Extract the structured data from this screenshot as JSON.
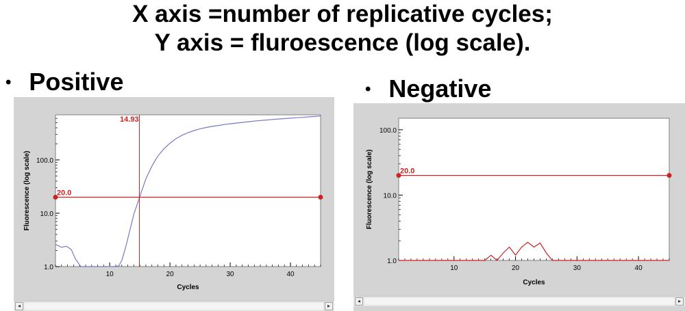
{
  "header": {
    "line1": "X axis =number of replicative cycles;",
    "line2": "Y axis = fluroescence (log scale)."
  },
  "sections": [
    {
      "bullet": "•",
      "label": "Positive"
    },
    {
      "bullet": "•",
      "label": "Negative"
    }
  ],
  "icons": {
    "scroll_left": "chevron-left-icon",
    "scroll_right": "chevron-right-icon"
  },
  "scroll": {
    "left": "◂",
    "right": "▸"
  },
  "colors": {
    "curve": "#7777cc",
    "threshold": "#cc2222",
    "panel": "#d4d4d4",
    "plot_bg": "#ffffff"
  },
  "chart_data": [
    {
      "type": "line",
      "xlabel": "Cycles",
      "ylabel": "Fluorescence (log scale)",
      "xlim": [
        1,
        45
      ],
      "ylim": [
        1,
        700
      ],
      "yscale": "log",
      "x_ticks": [
        10,
        20,
        30,
        40
      ],
      "y_ticks": [
        1.0,
        10.0,
        100.0
      ],
      "y_tick_labels": [
        "1.0",
        "10.0",
        "100.0"
      ],
      "threshold": {
        "value": 20.0,
        "label": "20.0"
      },
      "ct": {
        "value": 14.93,
        "label": "14.93"
      },
      "series": [
        {
          "x": [
            1,
            2,
            2.8,
            3.6,
            4.3,
            5.2,
            6,
            7,
            8,
            9,
            10,
            10.7,
            11.5,
            12,
            12.6,
            13,
            13.5,
            14,
            14.5,
            15,
            15.5,
            16,
            16.5,
            17,
            17.5,
            18,
            19,
            20,
            21,
            22,
            23,
            24,
            25,
            26,
            27,
            28,
            29,
            30,
            31,
            32,
            33,
            34,
            35,
            36,
            37,
            38,
            39,
            40,
            41,
            42,
            43,
            44,
            45
          ],
          "y": [
            2.6,
            2.3,
            2.4,
            2.1,
            1.4,
            1.0,
            1.0,
            1.0,
            1.0,
            1.0,
            1.0,
            1.0,
            1.03,
            1.3,
            2.2,
            3.3,
            5.6,
            9.5,
            14,
            20.5,
            30,
            44,
            58,
            76,
            96,
            118,
            162,
            205,
            250,
            290,
            325,
            355,
            383,
            405,
            425,
            442,
            460,
            475,
            490,
            505,
            520,
            535,
            548,
            560,
            572,
            585,
            595,
            605,
            618,
            628,
            640,
            650,
            665
          ]
        }
      ]
    },
    {
      "type": "line",
      "xlabel": "Cycles",
      "ylabel": "Fluorescence (log scale)",
      "xlim": [
        1,
        45
      ],
      "ylim": [
        1,
        150
      ],
      "yscale": "log",
      "x_ticks": [
        10,
        20,
        30,
        40
      ],
      "y_ticks": [
        1.0,
        10.0,
        100.0
      ],
      "y_tick_labels": [
        "1.0",
        "10.0",
        "100.0"
      ],
      "threshold": {
        "value": 20.0,
        "label": "20.0"
      },
      "series": [
        {
          "x": [
            1,
            15,
            16,
            17,
            18,
            19,
            20,
            21,
            22,
            23,
            24,
            25,
            26,
            45
          ],
          "y": [
            1.0,
            1.0,
            1.2,
            1.0,
            1.3,
            1.6,
            1.2,
            1.6,
            1.9,
            1.6,
            1.85,
            1.3,
            1.0,
            1.0
          ]
        }
      ]
    }
  ]
}
